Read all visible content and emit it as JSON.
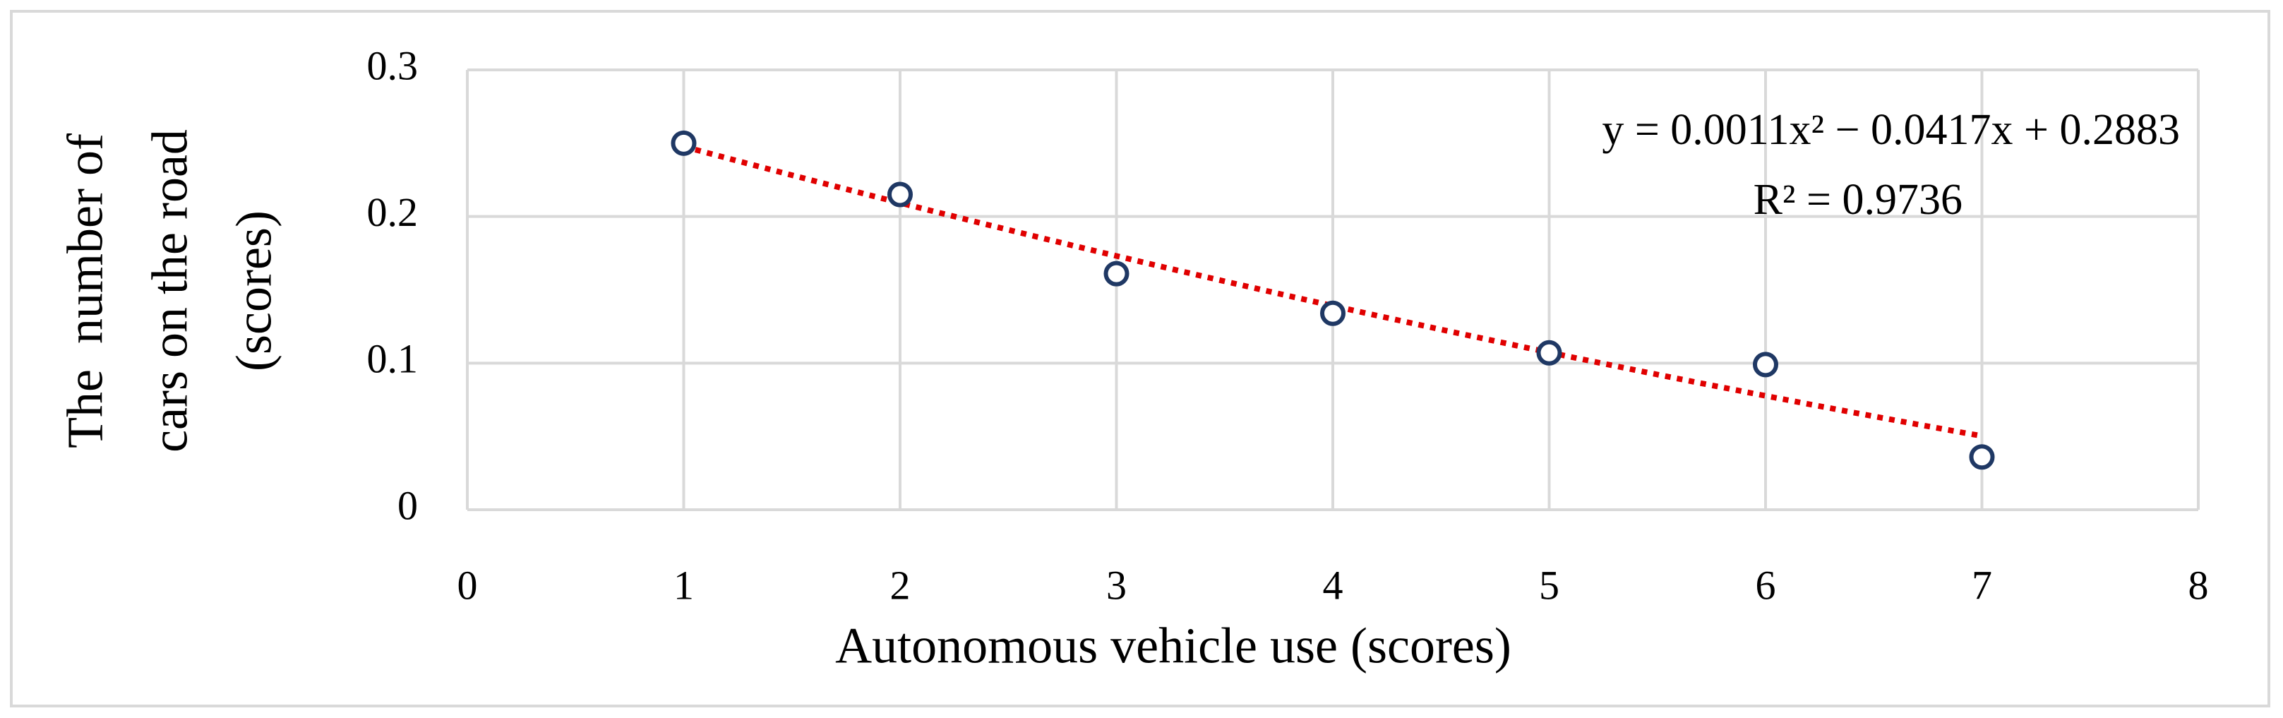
{
  "chart_data": {
    "type": "scatter",
    "x_label": "Autonomous vehicle use (scores)",
    "y_label": [
      "The  number of",
      "cars on the road",
      "(scores)"
    ],
    "series": [
      {
        "color": "#1f3864",
        "x": [
          1,
          2,
          3,
          4,
          5,
          6,
          7
        ],
        "values": [
          0.25,
          0.215,
          0.161,
          0.134,
          0.107,
          0.099,
          0.036
        ]
      }
    ],
    "trendline": {
      "type": "polynomial",
      "coefficients": [
        0.0011,
        -0.0417,
        0.2883
      ],
      "color": "#e00000",
      "equation": "y = 0.0011x² − 0.0417x + 0.2883",
      "r2": "R² = 0.9736"
    },
    "xlim": [
      0,
      8
    ],
    "xticks": [
      0,
      1,
      2,
      3,
      4,
      5,
      6,
      7,
      8
    ],
    "ylim": [
      0,
      0.3
    ],
    "yticks": [
      0,
      0.1,
      0.2,
      0.3
    ],
    "grid": true
  }
}
